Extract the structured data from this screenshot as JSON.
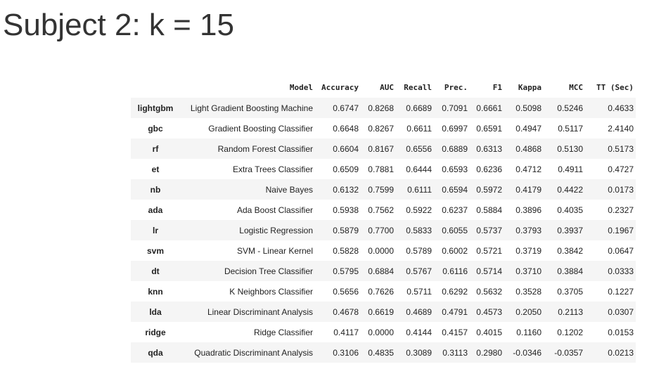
{
  "title": "Subject 2: k = 15",
  "table": {
    "columns": [
      "",
      "Model",
      "Accuracy",
      "AUC",
      "Recall",
      "Prec.",
      "F1",
      "Kappa",
      "MCC",
      "TT (Sec)"
    ],
    "rows": [
      [
        "lightgbm",
        "Light Gradient Boosting Machine",
        "0.6747",
        "0.8268",
        "0.6689",
        "0.7091",
        "0.6661",
        "0.5098",
        "0.5246",
        "0.4633"
      ],
      [
        "gbc",
        "Gradient Boosting Classifier",
        "0.6648",
        "0.8267",
        "0.6611",
        "0.6997",
        "0.6591",
        "0.4947",
        "0.5117",
        "2.4140"
      ],
      [
        "rf",
        "Random Forest Classifier",
        "0.6604",
        "0.8167",
        "0.6556",
        "0.6889",
        "0.6313",
        "0.4868",
        "0.5130",
        "0.5173"
      ],
      [
        "et",
        "Extra Trees Classifier",
        "0.6509",
        "0.7881",
        "0.6444",
        "0.6593",
        "0.6236",
        "0.4712",
        "0.4911",
        "0.4727"
      ],
      [
        "nb",
        "Naive Bayes",
        "0.6132",
        "0.7599",
        "0.6111",
        "0.6594",
        "0.5972",
        "0.4179",
        "0.4422",
        "0.0173"
      ],
      [
        "ada",
        "Ada Boost Classifier",
        "0.5938",
        "0.7562",
        "0.5922",
        "0.6237",
        "0.5884",
        "0.3896",
        "0.4035",
        "0.2327"
      ],
      [
        "lr",
        "Logistic Regression",
        "0.5879",
        "0.7700",
        "0.5833",
        "0.6055",
        "0.5737",
        "0.3793",
        "0.3937",
        "0.1967"
      ],
      [
        "svm",
        "SVM - Linear Kernel",
        "0.5828",
        "0.0000",
        "0.5789",
        "0.6002",
        "0.5721",
        "0.3719",
        "0.3842",
        "0.0647"
      ],
      [
        "dt",
        "Decision Tree Classifier",
        "0.5795",
        "0.6884",
        "0.5767",
        "0.6116",
        "0.5714",
        "0.3710",
        "0.3884",
        "0.0333"
      ],
      [
        "knn",
        "K Neighbors Classifier",
        "0.5656",
        "0.7626",
        "0.5711",
        "0.6292",
        "0.5632",
        "0.3528",
        "0.3705",
        "0.1227"
      ],
      [
        "lda",
        "Linear Discriminant Analysis",
        "0.4678",
        "0.6619",
        "0.4689",
        "0.4791",
        "0.4573",
        "0.2050",
        "0.2113",
        "0.0307"
      ],
      [
        "ridge",
        "Ridge Classifier",
        "0.4117",
        "0.0000",
        "0.4144",
        "0.4157",
        "0.4015",
        "0.1160",
        "0.1202",
        "0.0153"
      ],
      [
        "qda",
        "Quadratic Discriminant Analysis",
        "0.3106",
        "0.4835",
        "0.3089",
        "0.3113",
        "0.2980",
        "-0.0346",
        "-0.0357",
        "0.0213"
      ]
    ]
  }
}
